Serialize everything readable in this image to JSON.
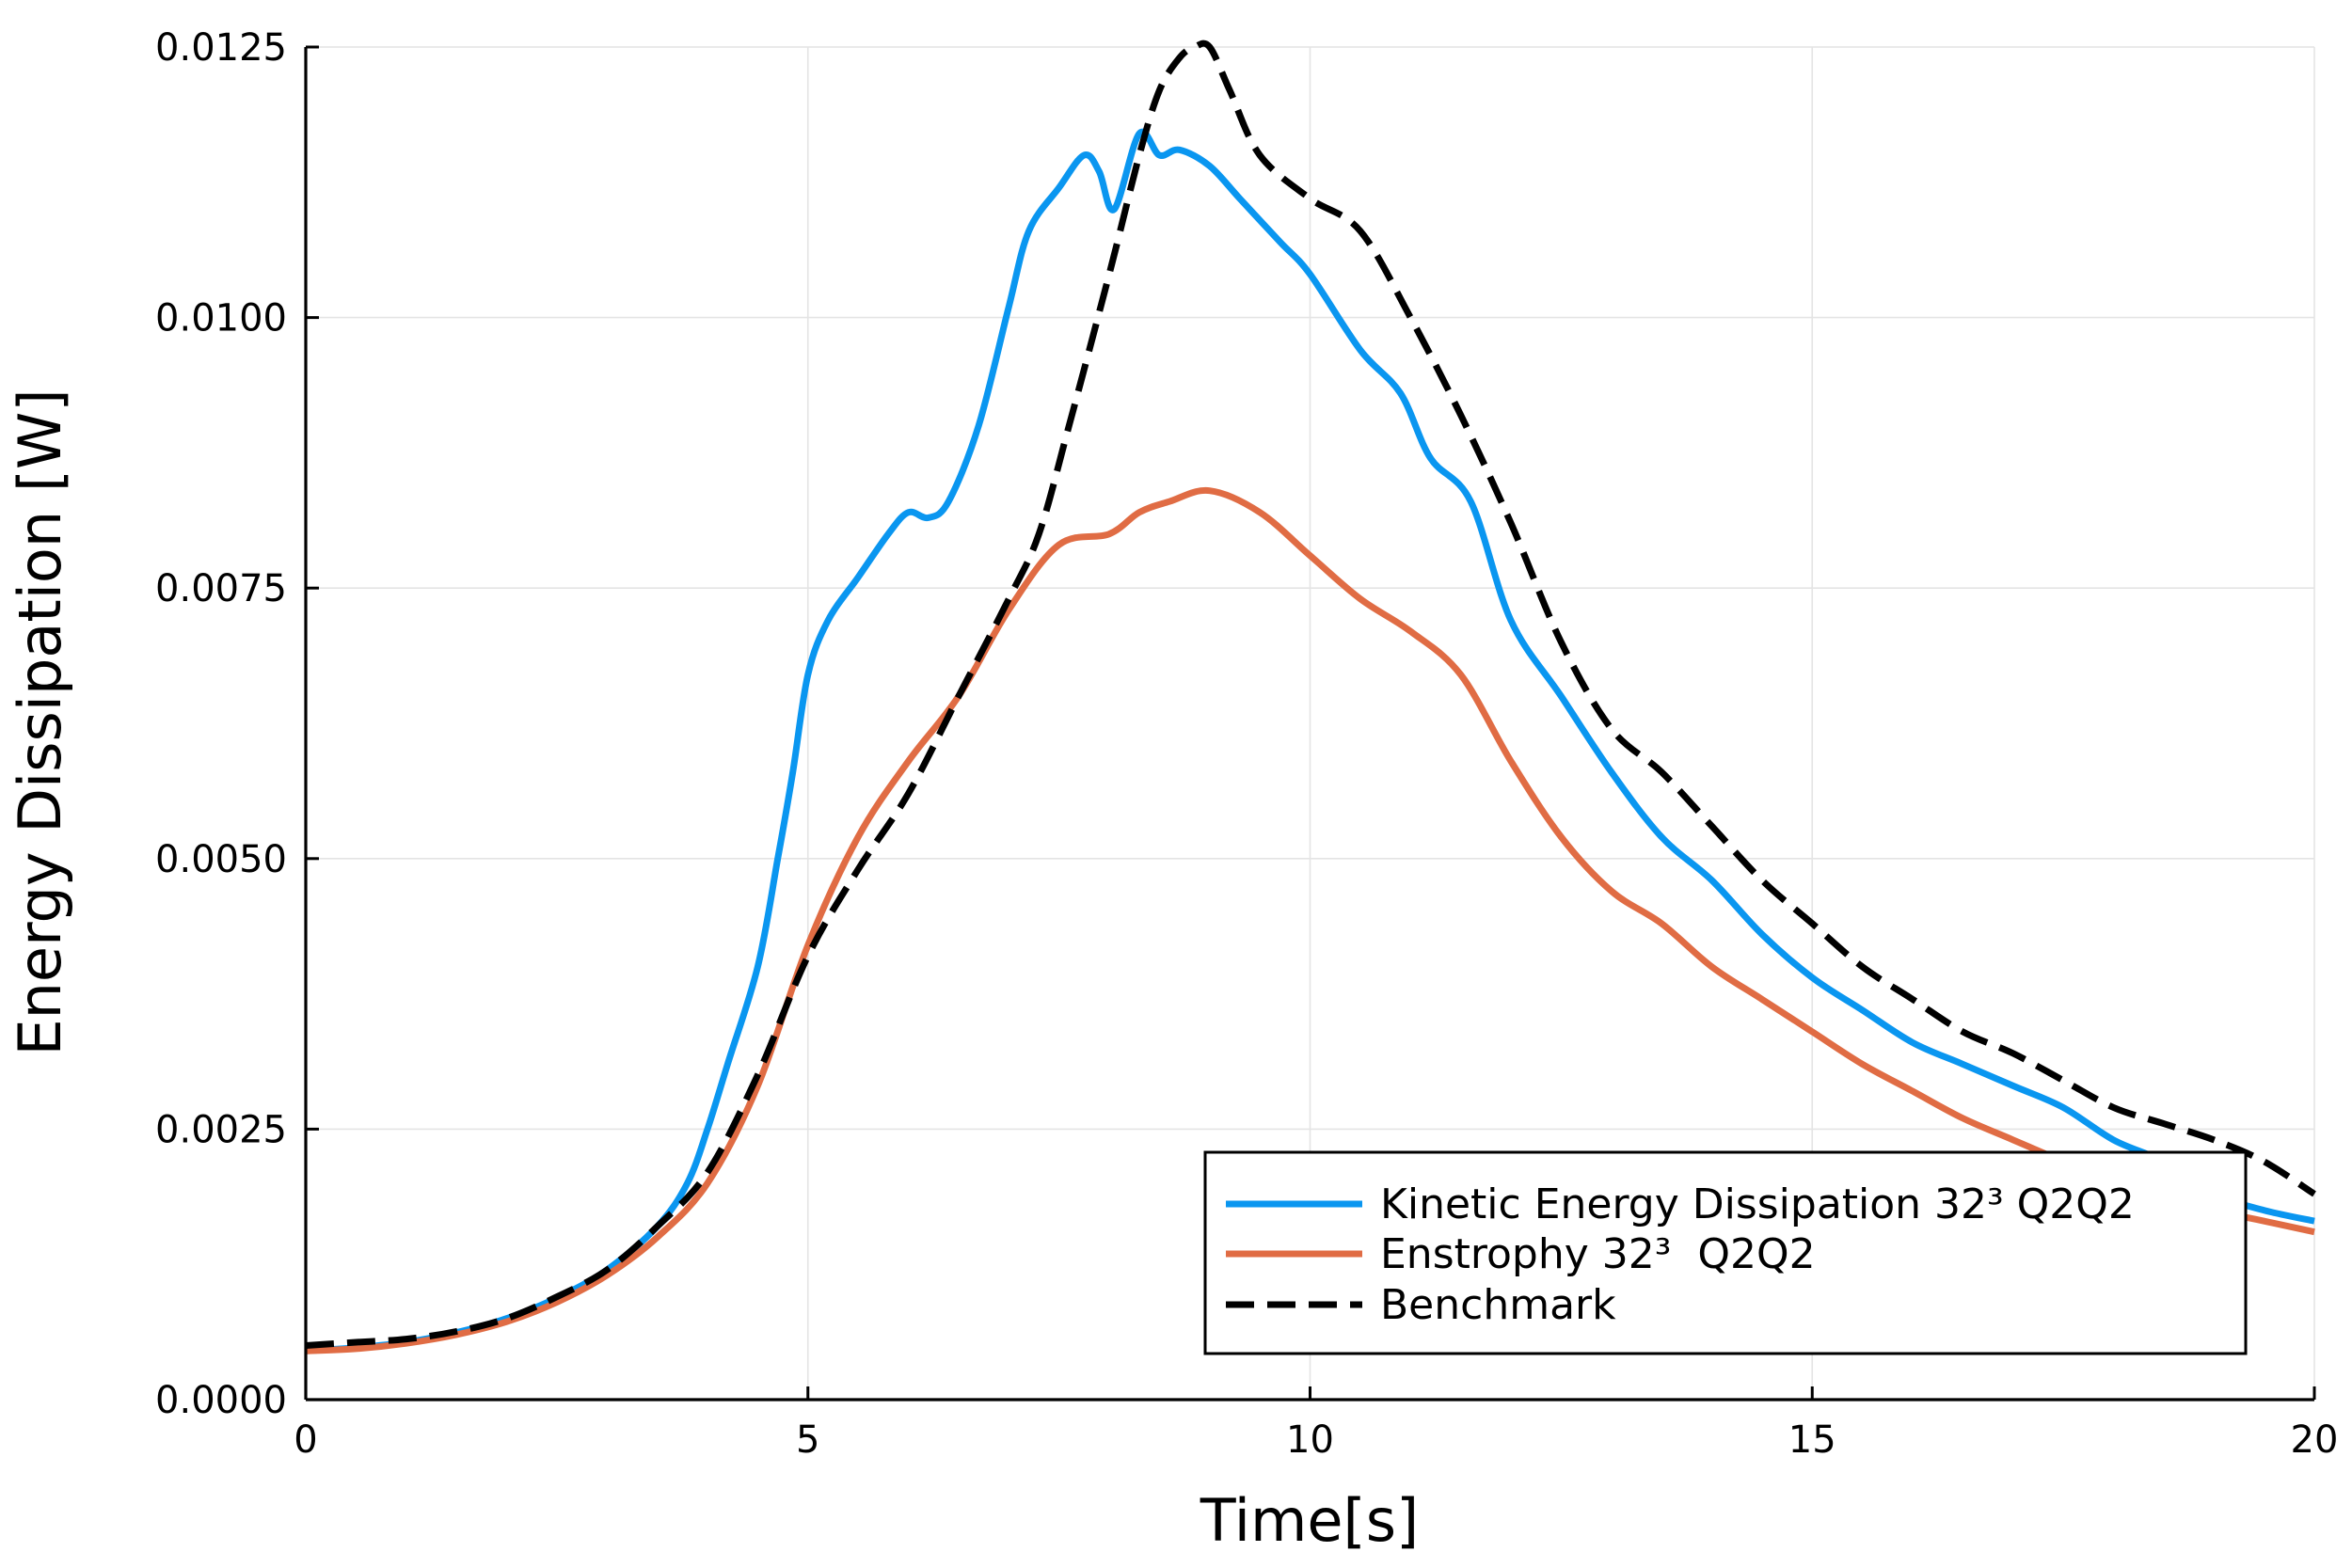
{
  "chart_data": {
    "type": "line",
    "title": "",
    "xlabel": "Time[s]",
    "ylabel": "Energy Dissipation [W]",
    "xlim": [
      0,
      20
    ],
    "ylim": [
      0,
      0.0125
    ],
    "xticks": [
      0,
      5,
      10,
      15,
      20
    ],
    "xtick_labels": [
      "0",
      "5",
      "10",
      "15",
      "20"
    ],
    "yticks": [
      0,
      0.0025,
      0.005,
      0.0075,
      0.01,
      0.0125
    ],
    "ytick_labels": [
      "0.0000",
      "0.0025",
      "0.0050",
      "0.0075",
      "0.0100",
      "0.0125"
    ],
    "grid": true,
    "legend_position": "bottom-right",
    "series": [
      {
        "name": "Kinetic Energy Dissipation 32³ Q2Q2",
        "color": "#0a96f0",
        "style": "solid",
        "x": [
          0,
          0.5,
          1,
          1.5,
          2,
          2.5,
          3,
          3.5,
          3.8,
          4,
          4.2,
          4.5,
          4.7,
          4.85,
          5,
          5.2,
          5.5,
          5.8,
          6,
          6.2,
          6.4,
          6.7,
          7,
          7.2,
          7.5,
          7.75,
          7.9,
          8.05,
          8.3,
          8.5,
          8.7,
          9,
          9.3,
          9.7,
          10,
          10.5,
          10.9,
          11.2,
          11.6,
          12,
          12.5,
          13,
          13.5,
          14,
          14.5,
          15,
          15.5,
          16,
          16.5,
          17,
          17.5,
          18,
          18.5,
          19,
          19.5,
          20
        ],
        "values": [
          0.00045,
          0.00048,
          0.00053,
          0.00062,
          0.00075,
          0.00094,
          0.0012,
          0.0016,
          0.002,
          0.0025,
          0.0031,
          0.004,
          0.005,
          0.0058,
          0.0067,
          0.0072,
          0.0076,
          0.008,
          0.0082,
          0.00815,
          0.0083,
          0.009,
          0.0101,
          0.0108,
          0.0112,
          0.0115,
          0.01135,
          0.011,
          0.0117,
          0.0115,
          0.01155,
          0.0114,
          0.0111,
          0.0107,
          0.0104,
          0.0097,
          0.0093,
          0.0087,
          0.0083,
          0.0072,
          0.0065,
          0.0058,
          0.0052,
          0.0048,
          0.0043,
          0.0039,
          0.0036,
          0.0033,
          0.0031,
          0.0029,
          0.0027,
          0.0024,
          0.0022,
          0.0019,
          0.00175,
          0.00165
        ]
      },
      {
        "name": "Enstrophy 32³  Q2Q2",
        "color": "#e06c44",
        "style": "solid",
        "x": [
          0,
          0.5,
          1,
          1.5,
          2,
          2.5,
          3,
          3.5,
          4,
          4.5,
          5,
          5.5,
          6,
          6.5,
          7,
          7.5,
          8,
          8.3,
          8.6,
          9,
          9.5,
          10,
          10.5,
          11,
          11.5,
          12,
          12.5,
          13,
          13.5,
          14,
          14.5,
          15,
          15.5,
          16,
          16.5,
          17,
          17.5,
          18,
          18.5,
          19,
          19.5,
          20
        ],
        "values": [
          0.00045,
          0.00047,
          0.00052,
          0.0006,
          0.00072,
          0.0009,
          0.00115,
          0.0015,
          0.002,
          0.0029,
          0.0042,
          0.0052,
          0.0059,
          0.0065,
          0.0073,
          0.0079,
          0.008,
          0.0082,
          0.0083,
          0.0084,
          0.0082,
          0.0078,
          0.0074,
          0.0071,
          0.0067,
          0.0059,
          0.0052,
          0.0047,
          0.0044,
          0.004,
          0.0037,
          0.0034,
          0.0031,
          0.00285,
          0.0026,
          0.0024,
          0.0022,
          0.002,
          0.0019,
          0.00175,
          0.00165,
          0.00155
        ]
      },
      {
        "name": "Benchmark",
        "color": "#000000",
        "style": "dashed",
        "x": [
          0,
          0.5,
          1,
          1.5,
          2,
          2.5,
          3,
          3.5,
          4,
          4.5,
          5,
          5.5,
          6,
          6.5,
          7,
          7.3,
          7.6,
          8,
          8.3,
          8.5,
          8.7,
          8.85,
          9,
          9.2,
          9.5,
          10,
          10.5,
          11,
          11.5,
          12,
          12.5,
          13,
          13.5,
          14,
          14.5,
          15,
          15.5,
          16,
          16.5,
          17,
          17.5,
          18,
          18.5,
          19,
          19.5,
          20
        ],
        "values": [
          0.0005,
          0.00053,
          0.00056,
          0.00063,
          0.00075,
          0.00095,
          0.0012,
          0.0016,
          0.0021,
          0.003,
          0.0041,
          0.0049,
          0.0056,
          0.0065,
          0.0074,
          0.008,
          0.009,
          0.0104,
          0.0115,
          0.0121,
          0.0124,
          0.0125,
          0.0125,
          0.0121,
          0.0115,
          0.0111,
          0.0108,
          0.01,
          0.0091,
          0.0081,
          0.007,
          0.0062,
          0.0058,
          0.0053,
          0.0048,
          0.0044,
          0.004,
          0.0037,
          0.0034,
          0.0032,
          0.00295,
          0.0027,
          0.00255,
          0.0024,
          0.0022,
          0.0019
        ]
      }
    ]
  }
}
